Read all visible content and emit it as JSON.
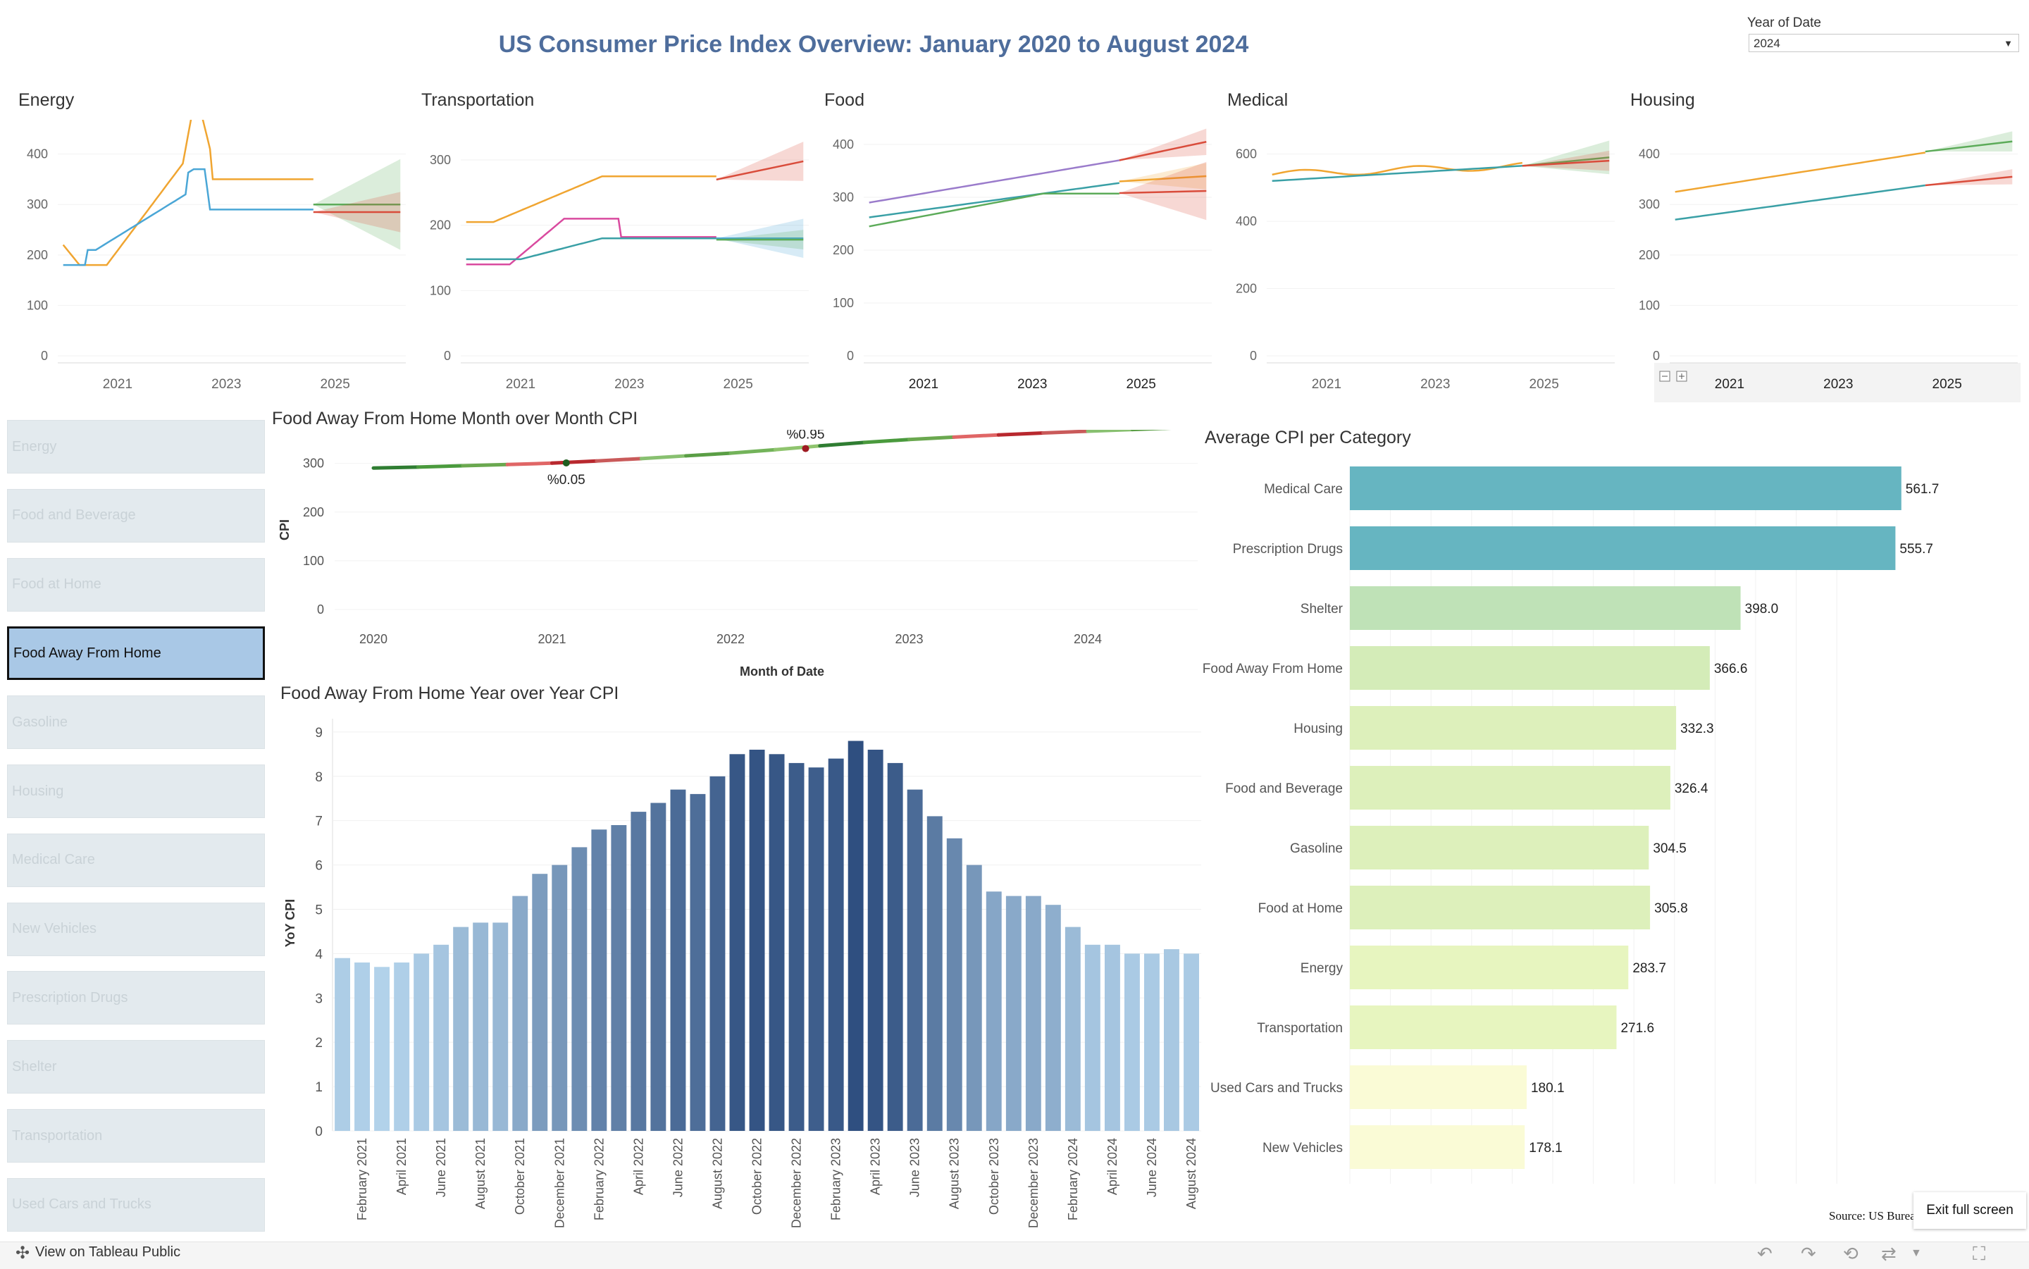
{
  "header": {
    "title": "US Consumer Price Index Overview: January 2020 to August 2024",
    "year_filter_label": "Year of Date",
    "year_filter_value": "2024"
  },
  "small_multiples": {
    "x_ticks": [
      "2021",
      "2023",
      "2025"
    ],
    "panels": [
      {
        "title": "Energy",
        "y_ticks": [
          0,
          100,
          200,
          300,
          400
        ],
        "ymax": 440
      },
      {
        "title": "Transportation",
        "y_ticks": [
          0,
          100,
          200,
          300
        ],
        "ymax": 340
      },
      {
        "title": "Food",
        "y_ticks": [
          0,
          100,
          200,
          300,
          400
        ],
        "ymax": 420
      },
      {
        "title": "Medical",
        "y_ticks": [
          0,
          200,
          400,
          600
        ],
        "ymax": 660
      },
      {
        "title": "Housing",
        "y_ticks": [
          0,
          100,
          200,
          300,
          400
        ],
        "ymax": 440
      }
    ],
    "colors": {
      "orange": "#f0a531",
      "blue": "#4aa6d6",
      "green": "#5cab59",
      "pink": "#d94a9f",
      "purple": "#9a7bcb",
      "teal": "#3aa0a6",
      "red": "#d94c3b"
    }
  },
  "filters": {
    "items": [
      "Energy",
      "Food and Beverage",
      "Food at Home",
      "Food Away From Home",
      "Gasoline",
      "Housing",
      "Medical Care",
      "New Vehicles",
      "Prescription Drugs",
      "Shelter",
      "Transportation",
      "Used Cars and Trucks"
    ],
    "selected_index": 3
  },
  "chart_data": [
    {
      "type": "line",
      "title": "Food Away From Home Month over Month CPI",
      "xlabel": "Month of Date",
      "ylabel": "CPI",
      "x_ticks": [
        "2020",
        "2021",
        "2022",
        "2023",
        "2024"
      ],
      "y_ticks": [
        0,
        100,
        200,
        300
      ],
      "xlim": [
        2020,
        2024.67
      ],
      "ylim": [
        0,
        340
      ],
      "x": [
        2020.0,
        2020.25,
        2020.5,
        2020.75,
        2021.0,
        2021.25,
        2021.5,
        2021.75,
        2022.0,
        2022.25,
        2022.5,
        2022.75,
        2023.0,
        2023.25,
        2023.5,
        2023.75,
        2024.0,
        2024.25,
        2024.5,
        2024.67
      ],
      "y": [
        290.5,
        292.5,
        295.2,
        297.6,
        300.5,
        305.0,
        309.8,
        315.5,
        321.0,
        328.0,
        336.0,
        343.0,
        349.0,
        354.0,
        358.5,
        362.5,
        366.0,
        369.5,
        373.0,
        376.0
      ],
      "annotations": [
        {
          "label": "%0.05",
          "x": 2021.08,
          "y": 301.0,
          "position": "below"
        },
        {
          "label": "%0.95",
          "x": 2022.42,
          "y": 330.5,
          "position": "above"
        }
      ]
    },
    {
      "type": "bar",
      "title": "Food Away From Home Year over Year CPI",
      "xlabel": "",
      "ylabel": "YoY CPI",
      "ylim": [
        0,
        9.3
      ],
      "y_ticks": [
        0,
        1,
        2,
        3,
        4,
        5,
        6,
        7,
        8,
        9
      ],
      "categories": [
        "January 2021",
        "February 2021",
        "March 2021",
        "April 2021",
        "May 2021",
        "June 2021",
        "July 2021",
        "August 2021",
        "September 2021",
        "October 2021",
        "November 2021",
        "December 2021",
        "January 2022",
        "February 2022",
        "March 2022",
        "April 2022",
        "May 2022",
        "June 2022",
        "July 2022",
        "August 2022",
        "September 2022",
        "October 2022",
        "November 2022",
        "December 2022",
        "January 2023",
        "February 2023",
        "March 2023",
        "April 2023",
        "May 2023",
        "June 2023",
        "July 2023",
        "August 2023",
        "September 2023",
        "October 2023",
        "November 2023",
        "December 2023",
        "January 2024",
        "February 2024",
        "March 2024",
        "April 2024",
        "May 2024",
        "June 2024",
        "July 2024",
        "August 2024"
      ],
      "x_tick_labels": [
        "February 2021",
        "April 2021",
        "June 2021",
        "August 2021",
        "October 2021",
        "December 2021",
        "February 2022",
        "April 2022",
        "June 2022",
        "August 2022",
        "October 2022",
        "December 2022",
        "February 2023",
        "April 2023",
        "June 2023",
        "August 2023",
        "October 2023",
        "December 2023",
        "February 2024",
        "April 2024",
        "June 2024",
        "August 2024"
      ],
      "values": [
        3.9,
        3.8,
        3.7,
        3.8,
        4.0,
        4.2,
        4.6,
        4.7,
        4.7,
        5.3,
        5.8,
        6.0,
        6.4,
        6.8,
        6.9,
        7.2,
        7.4,
        7.7,
        7.6,
        8.0,
        8.5,
        8.6,
        8.5,
        8.3,
        8.2,
        8.4,
        8.8,
        8.6,
        8.3,
        7.7,
        7.1,
        6.6,
        6.0,
        5.4,
        5.3,
        5.3,
        5.1,
        4.6,
        4.2,
        4.2,
        4.0,
        4.0,
        4.1,
        4.0
      ]
    },
    {
      "type": "bar",
      "orientation": "horizontal",
      "title": "Average CPI per Category",
      "xlim": [
        0,
        620
      ],
      "categories": [
        "Medical Care",
        "Prescription Drugs",
        "Shelter",
        "Food Away From Home",
        "Housing",
        "Food and Beverage",
        "Gasoline",
        "Food at Home",
        "Energy",
        "Transportation",
        "Used Cars and Trucks",
        "New Vehicles"
      ],
      "values": [
        561.7,
        555.7,
        398.0,
        366.6,
        332.3,
        326.4,
        304.5,
        305.8,
        283.7,
        271.6,
        180.1,
        178.1
      ],
      "labels": [
        "561.7",
        "555.7",
        "398.0",
        "366.6",
        "332.3",
        "326.4",
        "304.5",
        "305.8",
        "283.7",
        "271.6",
        "180.1",
        "178.1"
      ]
    }
  ],
  "footer": {
    "tableau_link": "View on Tableau Public",
    "exit_full_screen": "Exit full screen",
    "source": "Source: US Burea"
  }
}
